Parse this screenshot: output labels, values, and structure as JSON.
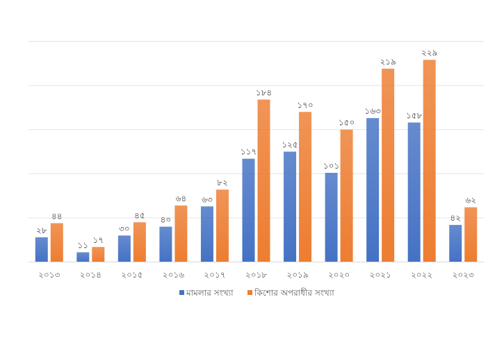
{
  "chart_data": {
    "type": "bar",
    "title": "",
    "xlabel": "",
    "ylabel": "",
    "ylim": [
      0,
      250
    ],
    "grid": true,
    "legend_position": "bottom",
    "categories": [
      "২০১৩",
      "২০১৪",
      "২০১৫",
      "২০১৬",
      "২০১৭",
      "২০১৮",
      "২০১৯",
      "২০২০",
      "২০২১",
      "২০২২",
      "২০২৩"
    ],
    "series": [
      {
        "name": "মামলার সংখ্যা",
        "color": "#4472C4",
        "values": [
          28,
          11,
          30,
          40,
          63,
          117,
          125,
          101,
          163,
          158,
          42
        ],
        "labels": [
          "২৮",
          "১১",
          "৩০",
          "৪০",
          "৬৩",
          "১১৭",
          "১২৫",
          "১০১",
          "১৬৩",
          "১৫৮",
          "৪২"
        ]
      },
      {
        "name": "কিশোর অপরাধীর সংখ্যা",
        "color": "#ED7D31",
        "values": [
          44,
          17,
          45,
          64,
          82,
          184,
          170,
          150,
          219,
          229,
          62
        ],
        "labels": [
          "৪৪",
          "১৭",
          "৪৫",
          "৬৪",
          "৮২",
          "১৮৪",
          "১৭০",
          "১৫০",
          "২১৯",
          "২২৯",
          "৬২"
        ]
      }
    ]
  }
}
